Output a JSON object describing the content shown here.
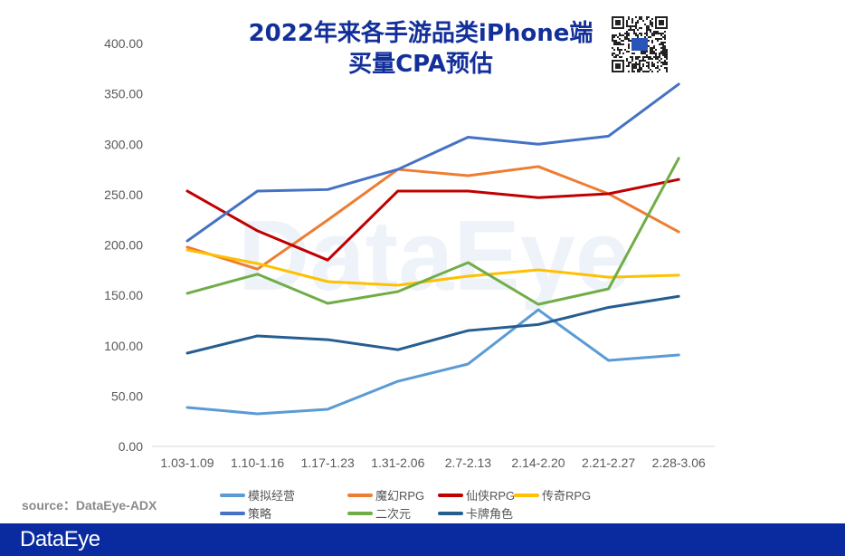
{
  "chart_data": {
    "type": "line",
    "title": "2022年来各手游品类iPhone端买量CPA预估",
    "title_lines": [
      "2022年来各手游品类iPhone端",
      "买量CPA预估"
    ],
    "categories": [
      "1.03-1.09",
      "1.10-1.16",
      "1.17-1.23",
      "1.31-2.06",
      "2.7-2.13",
      "2.14-2.20",
      "2.21-2.27",
      "2.28-3.06"
    ],
    "ylim": [
      0,
      400
    ],
    "yticks": [
      "0.00",
      "50.00",
      "100.00",
      "150.00",
      "200.00",
      "250.00",
      "300.00",
      "350.00",
      "400.00"
    ],
    "grid": false,
    "legend_placement": "bottom",
    "series": [
      {
        "name": "模拟经营",
        "color": "#5b9bd5",
        "values": [
          38.7,
          32.4,
          36.9,
          64.7,
          81.8,
          135.7,
          85.4,
          90.8
        ]
      },
      {
        "name": "魔幻RPG",
        "color": "#ed7d31",
        "values": [
          197.8,
          176,
          224.7,
          275,
          268.8,
          277.8,
          250.8,
          213
        ]
      },
      {
        "name": "仙侠RPG",
        "color": "#c00000",
        "values": [
          253.5,
          214,
          185,
          253.5,
          253.5,
          247,
          250.8,
          265
        ]
      },
      {
        "name": "传奇RPG",
        "color": "#ffc000",
        "values": [
          195,
          181.6,
          163.6,
          160,
          169,
          175.3,
          168,
          170
        ]
      },
      {
        "name": "策略",
        "color": "#4472c4",
        "values": [
          204,
          253.5,
          255,
          275,
          307,
          300,
          308,
          359.6
        ]
      },
      {
        "name": "二次元",
        "color": "#70ad47",
        "values": [
          152,
          171,
          142,
          153.7,
          182.5,
          141,
          156.4,
          286
        ]
      },
      {
        "name": "卡牌角色",
        "color": "#255e91",
        "values": [
          92.6,
          109.7,
          106,
          96,
          115,
          121,
          138,
          149
        ]
      }
    ]
  },
  "source": "source：DataEye-ADX",
  "watermark": "DataEye",
  "footer_logo": "DataEye",
  "colors": {
    "title": "#13309a",
    "footer": "#0a2ba0"
  }
}
